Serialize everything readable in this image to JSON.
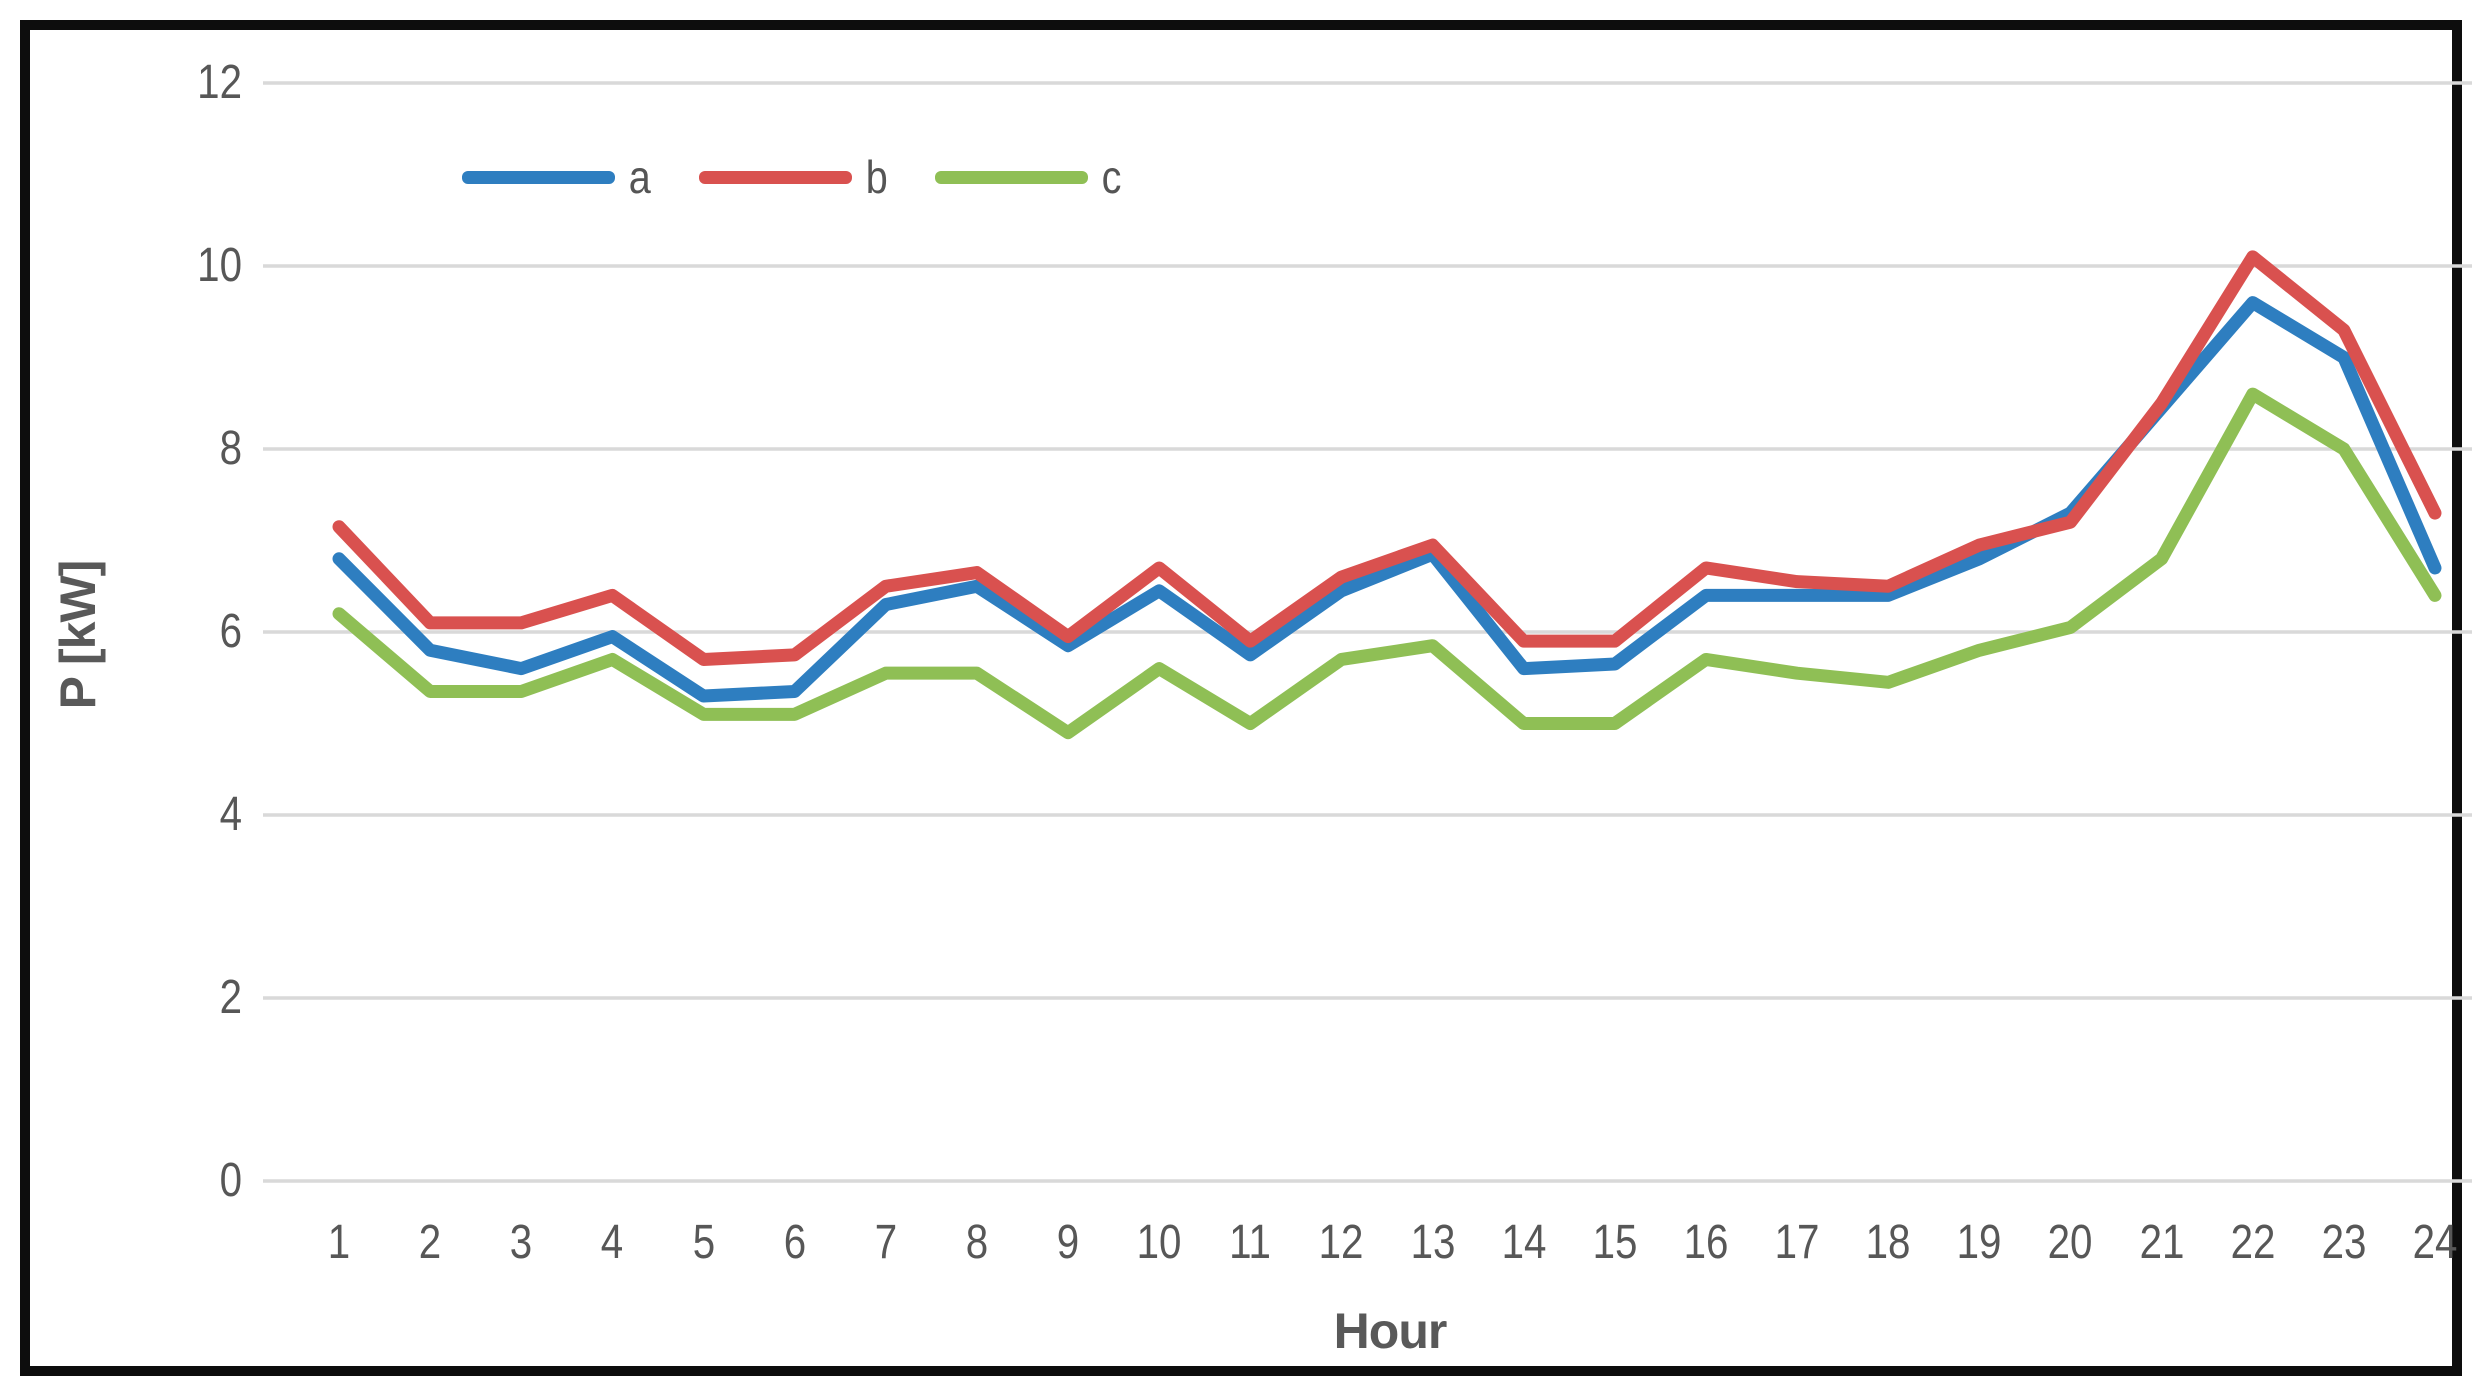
{
  "chart_data": {
    "type": "line",
    "title": "",
    "xlabel": "Hour",
    "ylabel": "P [kW]",
    "x": [
      1,
      2,
      3,
      4,
      5,
      6,
      7,
      8,
      9,
      10,
      11,
      12,
      13,
      14,
      15,
      16,
      17,
      18,
      19,
      20,
      21,
      22,
      23,
      24
    ],
    "series": [
      {
        "name": "a",
        "color": "#2e7ec0",
        "values": [
          6.8,
          5.8,
          5.6,
          5.95,
          5.3,
          5.35,
          6.3,
          6.5,
          5.85,
          6.45,
          5.75,
          6.45,
          6.85,
          5.6,
          5.65,
          6.4,
          6.4,
          6.4,
          6.8,
          7.3,
          8.45,
          9.6,
          9.0,
          6.7
        ]
      },
      {
        "name": "b",
        "color": "#d9514f",
        "values": [
          7.15,
          6.1,
          6.1,
          6.4,
          5.7,
          5.75,
          6.5,
          6.65,
          5.95,
          6.7,
          5.9,
          6.6,
          6.95,
          5.9,
          5.9,
          6.7,
          6.55,
          6.5,
          6.95,
          7.2,
          8.5,
          10.1,
          9.3,
          7.3
        ]
      },
      {
        "name": "c",
        "color": "#8fbf55",
        "values": [
          6.2,
          5.35,
          5.35,
          5.7,
          5.1,
          5.1,
          5.55,
          5.55,
          4.9,
          5.6,
          5.0,
          5.7,
          5.85,
          5.0,
          5.0,
          5.7,
          5.55,
          5.45,
          5.8,
          6.05,
          6.8,
          8.6,
          8.0,
          6.4
        ]
      }
    ],
    "y_ticks": [
      0,
      2,
      4,
      6,
      8,
      10,
      12
    ],
    "ylim": [
      0,
      12
    ],
    "grid": "horizontal-only",
    "gridline_color": "#d9d9d9",
    "legend_position": "top-left-inside",
    "tick_label_color": "#575757",
    "axis_title_color": "#595959",
    "frame_border_color": "#0d0d0d"
  }
}
